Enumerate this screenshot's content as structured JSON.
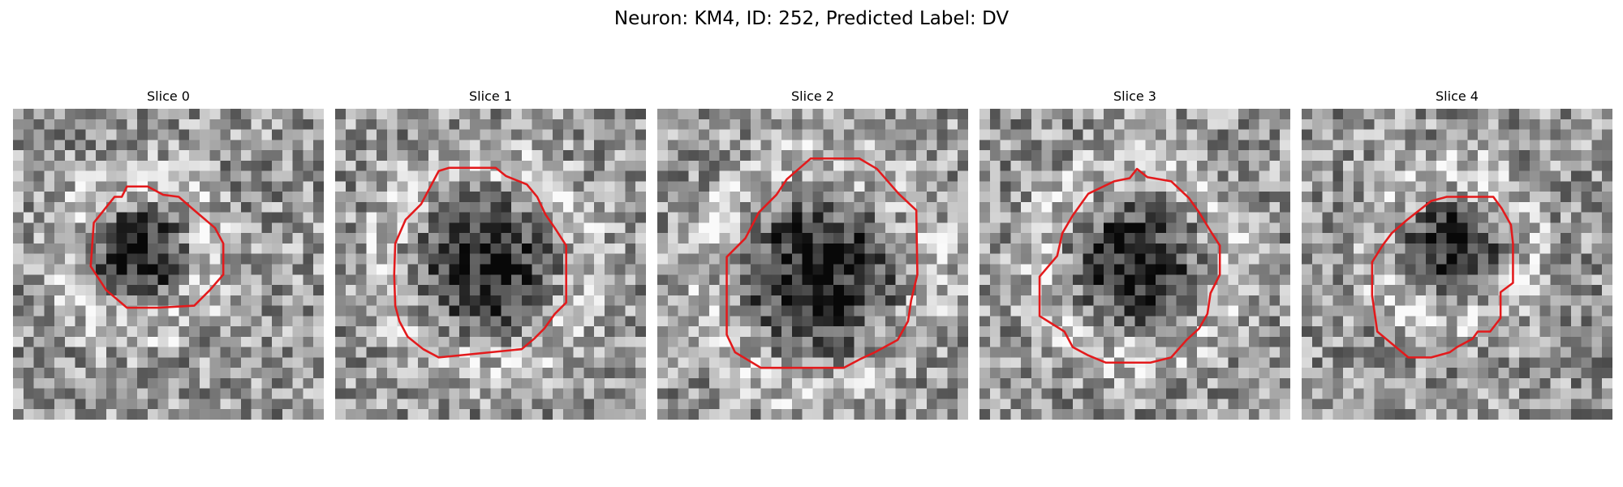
{
  "figure": {
    "title": "Neuron: KM4, ID: 252, Predicted Label: DV"
  },
  "colors": {
    "contour": "#e31a1c",
    "colormap": "gray"
  },
  "image_grid": {
    "rows": 30,
    "cols": 30
  },
  "slices": [
    {
      "title": "Slice 0",
      "dark_blob": {
        "cx": 12.0,
        "cy": 14.0,
        "r": 5.5
      },
      "contour": [
        [
          11,
          7.5
        ],
        [
          13,
          7.5
        ],
        [
          14.5,
          8.3
        ],
        [
          16,
          8.5
        ],
        [
          17.5,
          9.8
        ],
        [
          19.5,
          11.5
        ],
        [
          20.3,
          13
        ],
        [
          20.3,
          16
        ],
        [
          19,
          17.5
        ],
        [
          17.5,
          19
        ],
        [
          14,
          19.2
        ],
        [
          11,
          19.2
        ],
        [
          9,
          17.5
        ],
        [
          7.5,
          15.2
        ],
        [
          7.8,
          11
        ],
        [
          9.8,
          8.5
        ],
        [
          10.5,
          8.5
        ]
      ]
    },
    {
      "title": "Slice 1",
      "dark_blob": {
        "cx": 14.5,
        "cy": 15.0,
        "r": 8.0
      },
      "contour": [
        [
          10,
          6
        ],
        [
          11,
          5.7
        ],
        [
          15.5,
          5.7
        ],
        [
          16.5,
          6.5
        ],
        [
          18.5,
          7.3
        ],
        [
          19.5,
          8.5
        ],
        [
          20.3,
          10.2
        ],
        [
          21.2,
          11.5
        ],
        [
          22.3,
          13.2
        ],
        [
          22.3,
          18.7
        ],
        [
          21.2,
          19.8
        ],
        [
          20.2,
          21.2
        ],
        [
          19.2,
          22.2
        ],
        [
          18,
          23.2
        ],
        [
          10,
          24
        ],
        [
          8.5,
          23.2
        ],
        [
          7,
          22
        ],
        [
          6.2,
          20.5
        ],
        [
          5.8,
          19
        ],
        [
          5.7,
          16
        ],
        [
          5.8,
          13
        ],
        [
          6.8,
          10.7
        ],
        [
          8.3,
          9.2
        ]
      ]
    },
    {
      "title": "Slice 2",
      "dark_blob": {
        "cx": 15.5,
        "cy": 16.0,
        "r": 9.2
      },
      "contour": [
        [
          14.8,
          4.8
        ],
        [
          19.5,
          4.8
        ],
        [
          21.2,
          5.8
        ],
        [
          23.3,
          8.2
        ],
        [
          25,
          9.8
        ],
        [
          25.1,
          16
        ],
        [
          24.5,
          18.5
        ],
        [
          24.2,
          20.5
        ],
        [
          23.2,
          22.3
        ],
        [
          21,
          23.5
        ],
        [
          19.5,
          24.2
        ],
        [
          18,
          25
        ],
        [
          10,
          25
        ],
        [
          7.5,
          23.5
        ],
        [
          6.7,
          21.8
        ],
        [
          6.7,
          14.3
        ],
        [
          8.5,
          12.5
        ],
        [
          9.8,
          10
        ],
        [
          11.5,
          8.3
        ],
        [
          12.5,
          6.8
        ]
      ]
    },
    {
      "title": "Slice 3",
      "dark_blob": {
        "cx": 15.0,
        "cy": 15.0,
        "r": 7.3
      },
      "contour": [
        [
          15.2,
          5.8
        ],
        [
          16.2,
          6.6
        ],
        [
          18.5,
          7
        ],
        [
          20.2,
          8.6
        ],
        [
          21.2,
          10
        ],
        [
          22.3,
          11.8
        ],
        [
          23.2,
          13.2
        ],
        [
          23.2,
          16
        ],
        [
          22.3,
          17.8
        ],
        [
          22,
          19.8
        ],
        [
          21.2,
          21.2
        ],
        [
          20,
          22.3
        ],
        [
          18.5,
          24
        ],
        [
          16.5,
          24.5
        ],
        [
          12.2,
          24.5
        ],
        [
          10.5,
          23.8
        ],
        [
          9,
          23
        ],
        [
          8.2,
          21.5
        ],
        [
          5.8,
          20
        ],
        [
          5.8,
          16.2
        ],
        [
          7.5,
          14.2
        ],
        [
          8,
          12
        ],
        [
          9,
          10.3
        ],
        [
          10.5,
          8.2
        ],
        [
          13,
          7
        ],
        [
          14.5,
          6.7
        ]
      ]
    },
    {
      "title": "Slice 4",
      "dark_blob": {
        "cx": 14.5,
        "cy": 13.5,
        "r": 5.5
      },
      "contour": [
        [
          14,
          8.5
        ],
        [
          18.5,
          8.5
        ],
        [
          19.3,
          9.6
        ],
        [
          20.2,
          11.2
        ],
        [
          20.4,
          13
        ],
        [
          20.4,
          16.8
        ],
        [
          19.2,
          17.7
        ],
        [
          19.2,
          20.2
        ],
        [
          18.2,
          21.5
        ],
        [
          17,
          21.5
        ],
        [
          16.5,
          22.2
        ],
        [
          15,
          23
        ],
        [
          14.3,
          23.5
        ],
        [
          12.5,
          24
        ],
        [
          10.3,
          24
        ],
        [
          8.5,
          22.5
        ],
        [
          7.3,
          21.5
        ],
        [
          6.8,
          18
        ],
        [
          6.8,
          14.8
        ],
        [
          7.8,
          13.2
        ],
        [
          8.7,
          12
        ],
        [
          10.2,
          10.7
        ],
        [
          12.5,
          8.9
        ]
      ]
    }
  ]
}
